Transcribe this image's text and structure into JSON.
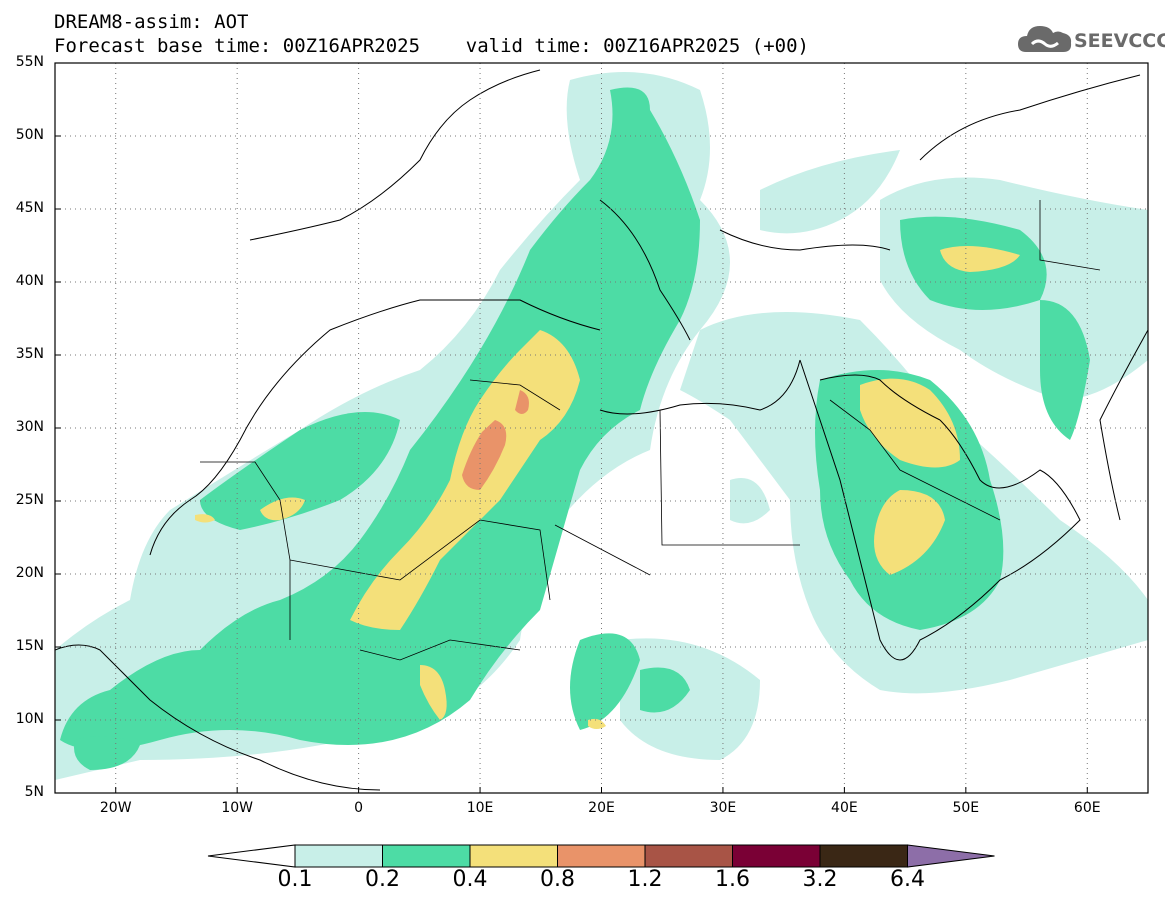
{
  "title": {
    "line1": "DREAM8-assim: AOT",
    "line2": "Forecast base time: 00Z16APR2025    valid time: 00Z16APR2025 (+00)"
  },
  "logo": {
    "text": "SEEVCCC",
    "icon": "cloud-icon"
  },
  "map": {
    "variable": "AOT",
    "lon_range": [
      -25,
      65
    ],
    "lat_range": [
      5,
      55
    ],
    "grid": "dotted",
    "lat_labels": [
      "55N",
      "50N",
      "45N",
      "40N",
      "35N",
      "30N",
      "25N",
      "20N",
      "15N",
      "10N",
      "5N"
    ],
    "lon_labels": [
      "20W",
      "10W",
      "0",
      "10E",
      "20E",
      "30E",
      "40E",
      "50E",
      "60E"
    ]
  },
  "colorbar": {
    "labels": [
      "0.1",
      "0.2",
      "0.4",
      "0.8",
      "1.2",
      "1.6",
      "3.2",
      "6.4"
    ],
    "colors": [
      "#ffffff",
      "#c8efe8",
      "#4ddca5",
      "#f4e07a",
      "#e99369",
      "#a85446",
      "#7a0035",
      "#3a2715",
      "#8d6ea8"
    ]
  }
}
